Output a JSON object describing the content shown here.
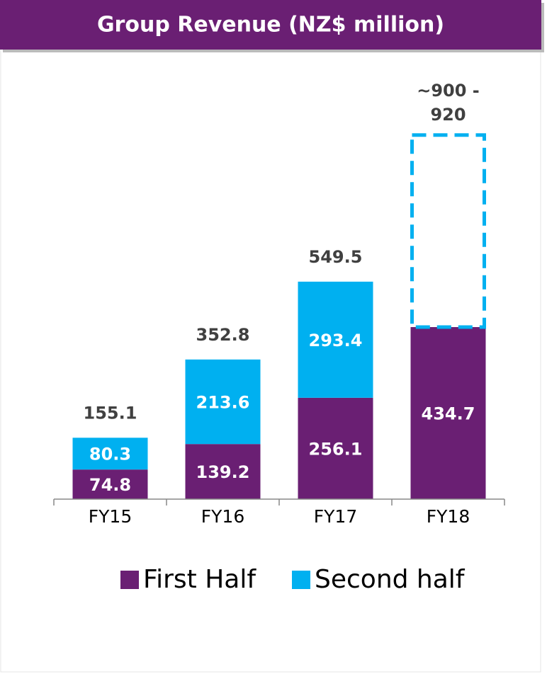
{
  "chart_data": {
    "type": "stacked_bar",
    "title": "Group Revenue (NZ$ million)",
    "categories": [
      "FY15",
      "FY16",
      "FY17",
      "FY18"
    ],
    "series": [
      {
        "name": "First Half",
        "color": "#6a1f73",
        "values": [
          74.8,
          139.2,
          256.1,
          434.7
        ]
      },
      {
        "name": "Second half",
        "color": "#00b0f0",
        "values": [
          80.3,
          213.6,
          293.4,
          null
        ]
      }
    ],
    "totals": [
      155.1,
      352.8,
      549.5,
      null
    ],
    "forecast": {
      "label": "~900 - 920",
      "range": [
        900,
        920
      ]
    },
    "ylim": [
      0,
      1000
    ]
  }
}
